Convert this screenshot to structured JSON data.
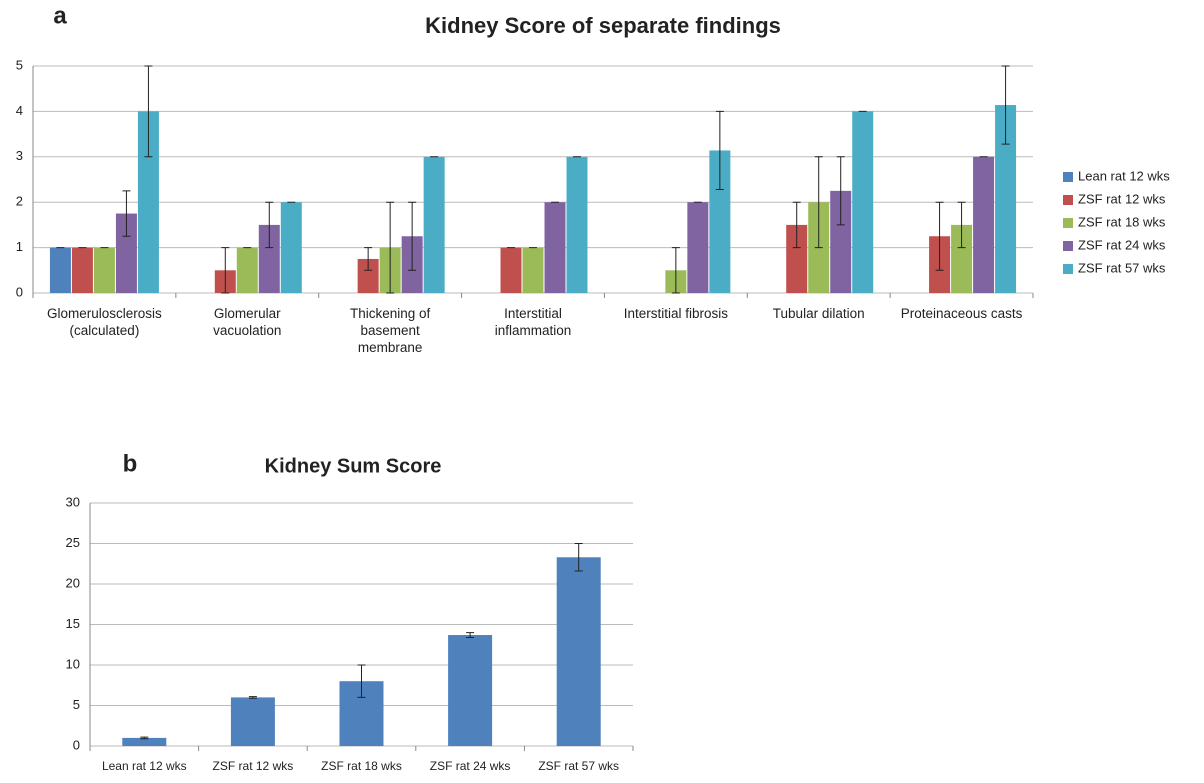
{
  "chart_data": [
    {
      "type": "bar",
      "panel_label": "a",
      "title": "Kidney Score of separate findings",
      "categories": [
        "Glomerulosclerosis (calculated)",
        "Glomerular vacuolation",
        "Thickening of basement membrane",
        "Interstitial inflammation",
        "Interstitial fibrosis",
        "Tubular dilation",
        "Proteinaceous casts"
      ],
      "series": [
        {
          "name": "Lean rat 12 wks",
          "color": "#4f81bd",
          "values": [
            1,
            null,
            null,
            null,
            null,
            null,
            null
          ],
          "errors": [
            0,
            null,
            null,
            null,
            null,
            null,
            null
          ]
        },
        {
          "name": "ZSF rat 12 wks",
          "color": "#c0504d",
          "values": [
            1,
            0.5,
            0.75,
            1,
            null,
            1.5,
            1.25
          ],
          "errors": [
            0,
            0.5,
            0.25,
            0,
            null,
            0.5,
            0.75
          ]
        },
        {
          "name": "ZSF rat 18 wks",
          "color": "#9bbb59",
          "values": [
            1,
            1,
            1,
            1,
            0.5,
            2,
            1.5
          ],
          "errors": [
            0,
            0,
            1,
            0,
            0.5,
            1,
            0.5
          ]
        },
        {
          "name": "ZSF rat 24 wks",
          "color": "#8064a2",
          "values": [
            1.75,
            1.5,
            1.25,
            2,
            2,
            2.25,
            3
          ],
          "errors": [
            0.5,
            0.5,
            0.75,
            0,
            0,
            0.75,
            0
          ]
        },
        {
          "name": "ZSF rat 57 wks",
          "color": "#4bacc6",
          "values": [
            4,
            2,
            3,
            3,
            3.14,
            4,
            4.14
          ],
          "errors": [
            1,
            0,
            0,
            0,
            0.86,
            0,
            0.86
          ]
        }
      ],
      "ylim": [
        0,
        5
      ],
      "yticks": [
        0,
        1,
        2,
        3,
        4,
        5
      ],
      "grid": true,
      "legend": "right"
    },
    {
      "type": "bar",
      "panel_label": "b",
      "title": "Kidney Sum Score",
      "categories": [
        "Lean rat 12 wks",
        "ZSF rat 12 wks",
        "ZSF rat 18 wks",
        "ZSF rat 24 wks",
        "ZSF rat 57 wks"
      ],
      "series": [
        {
          "color": "#4f81bd",
          "values": [
            1,
            6,
            8,
            13.7,
            23.3
          ],
          "errors": [
            0.1,
            0.1,
            2,
            0.3,
            1.7
          ]
        }
      ],
      "ylim": [
        0,
        30
      ],
      "yticks": [
        0,
        5,
        10,
        15,
        20,
        25,
        30
      ],
      "grid": true
    }
  ]
}
